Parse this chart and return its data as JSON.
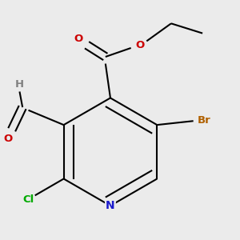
{
  "background_color": "#ebebeb",
  "atom_colors": {
    "C": "#000000",
    "N": "#1a1acc",
    "O": "#cc0000",
    "Cl": "#00aa00",
    "Br": "#b06000",
    "H": "#808080"
  },
  "bond_color": "#000000",
  "bond_width": 1.5,
  "font_size": 9.5
}
